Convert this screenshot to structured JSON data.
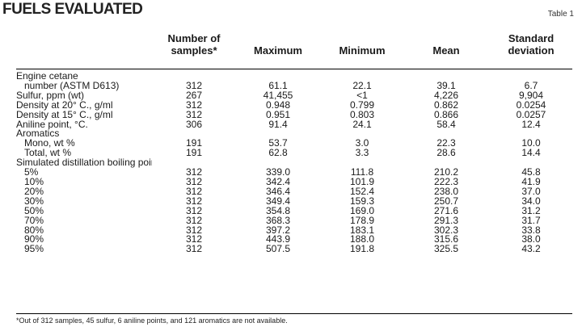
{
  "title": "Fuels evaluated",
  "table_label": "Table 1",
  "columns": [
    "Number of samples*",
    "Maximum",
    "Minimum",
    "Mean",
    "Standard deviation"
  ],
  "rows": [
    {
      "label": "Engine cetane",
      "indent": false,
      "values": [
        "",
        "",
        "",
        "",
        ""
      ]
    },
    {
      "label": "number (ASTM D613)",
      "indent": true,
      "values": [
        "312",
        "61.1",
        "22.1",
        "39.1",
        "6.7"
      ]
    },
    {
      "label": "Sulfur, ppm (wt)",
      "indent": false,
      "values": [
        "267",
        "41,455",
        "<1",
        "4,226",
        "9,904"
      ]
    },
    {
      "label": "Density at 20° C., g/ml",
      "indent": false,
      "values": [
        "312",
        "0.948",
        "0.799",
        "0.862",
        "0.0254"
      ]
    },
    {
      "label": "Density at 15° C., g/ml",
      "indent": false,
      "values": [
        "312",
        "0.951",
        "0.803",
        "0.866",
        "0.0257"
      ]
    },
    {
      "label": "Aniline point, °C.",
      "indent": false,
      "values": [
        "306",
        "91.4",
        "24.1",
        "58.4",
        "12.4"
      ]
    },
    {
      "label": "Aromatics",
      "indent": false,
      "values": [
        "",
        "",
        "",
        "",
        ""
      ]
    },
    {
      "label": "Mono, wt %",
      "indent": true,
      "values": [
        "191",
        "53.7",
        "3.0",
        "22.3",
        "10.0"
      ]
    },
    {
      "label": "Total, wt %",
      "indent": true,
      "values": [
        "191",
        "62.8",
        "3.3",
        "28.6",
        "14.4"
      ]
    },
    {
      "label": "Simulated distillation boiling points, °C.",
      "indent": false,
      "values": [
        "",
        "",
        "",
        "",
        ""
      ]
    },
    {
      "label": "5%",
      "indent": true,
      "values": [
        "312",
        "339.0",
        "111.8",
        "210.2",
        "45.8"
      ]
    },
    {
      "label": "10%",
      "indent": true,
      "values": [
        "312",
        "342.4",
        "101.9",
        "222.3",
        "41.9"
      ]
    },
    {
      "label": "20%",
      "indent": true,
      "values": [
        "312",
        "346.4",
        "152.4",
        "238.0",
        "37.0"
      ]
    },
    {
      "label": "30%",
      "indent": true,
      "values": [
        "312",
        "349.4",
        "159.3",
        "250.7",
        "34.0"
      ]
    },
    {
      "label": "50%",
      "indent": true,
      "values": [
        "312",
        "354.8",
        "169.0",
        "271.6",
        "31.2"
      ]
    },
    {
      "label": "70%",
      "indent": true,
      "values": [
        "312",
        "368.3",
        "178.9",
        "291.3",
        "31.7"
      ]
    },
    {
      "label": "80%",
      "indent": true,
      "values": [
        "312",
        "397.2",
        "183.1",
        "302.3",
        "33.8"
      ]
    },
    {
      "label": "90%",
      "indent": true,
      "values": [
        "312",
        "443.9",
        "188.0",
        "315.6",
        "38.0"
      ]
    },
    {
      "label": "95%",
      "indent": true,
      "values": [
        "312",
        "507.5",
        "191.8",
        "325.5",
        "43.2"
      ]
    }
  ],
  "footnote": "*Out of 312 samples, 45 sulfur, 6 aniline points, and 121 aromatics are not available."
}
